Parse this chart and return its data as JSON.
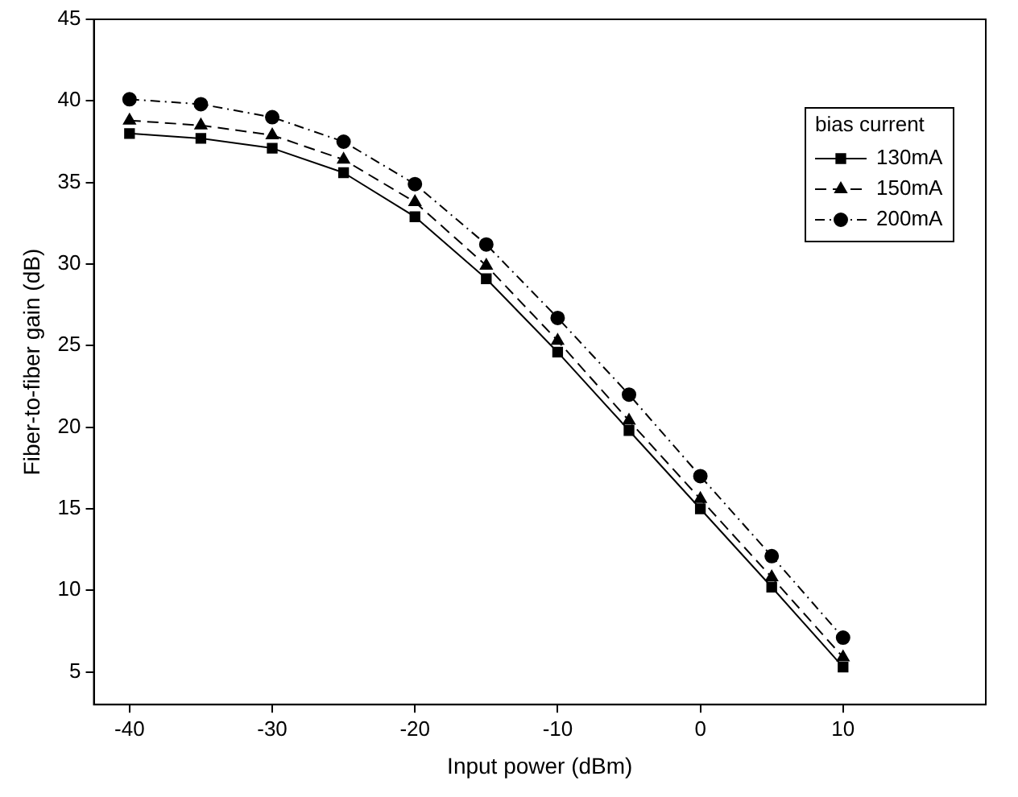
{
  "chart_data": {
    "type": "line",
    "xlabel": "Input power (dBm)",
    "ylabel": "Fiber-to-fiber gain (dB)",
    "legend_title": "bias current",
    "legend": "top right",
    "grid": false,
    "x": [
      -40,
      -35,
      -30,
      -25,
      -20,
      -15,
      -10,
      -5,
      0,
      5,
      10
    ],
    "xlim": [
      -42.5,
      20
    ],
    "xticks": [
      -40,
      -30,
      -20,
      -10,
      0,
      10
    ],
    "ylim": [
      3,
      45
    ],
    "yticks": [
      5,
      10,
      15,
      20,
      25,
      30,
      35,
      40,
      45
    ],
    "series": [
      {
        "name": "130mA",
        "color": "#000000",
        "marker": "square",
        "line_style": "solid",
        "values": [
          38.0,
          37.7,
          37.1,
          35.6,
          32.9,
          29.1,
          24.6,
          19.8,
          15.0,
          10.2,
          5.3
        ]
      },
      {
        "name": "150mA",
        "color": "#000000",
        "marker": "triangle",
        "line_style": "dashed",
        "values": [
          38.8,
          38.5,
          37.9,
          36.4,
          33.8,
          29.9,
          25.3,
          20.4,
          15.6,
          10.8,
          5.9
        ]
      },
      {
        "name": "200mA",
        "color": "#000000",
        "marker": "circle",
        "line_style": "dotted",
        "values": [
          40.1,
          39.8,
          39.0,
          37.5,
          34.9,
          31.2,
          26.7,
          22.0,
          17.0,
          12.1,
          7.1
        ]
      }
    ]
  }
}
